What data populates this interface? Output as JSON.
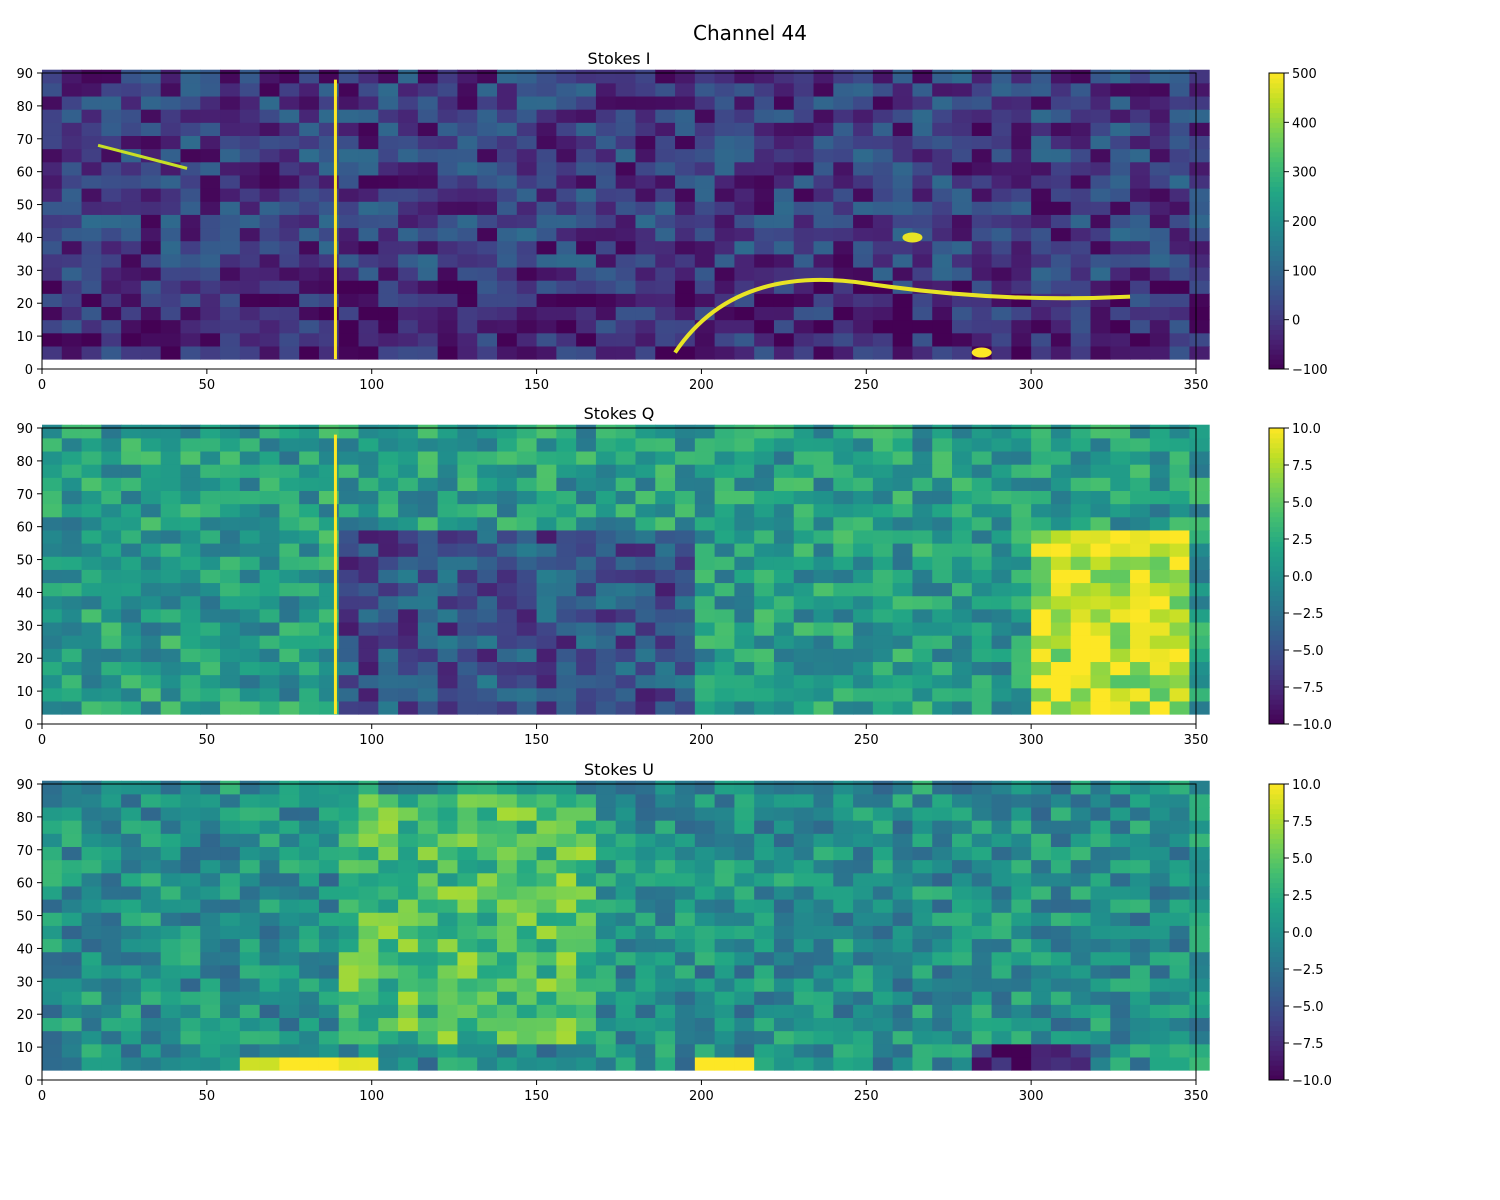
{
  "figure": {
    "suptitle": "Channel 44"
  },
  "chart_data": [
    {
      "type": "heatmap",
      "title": "Stokes I",
      "xlabel": "",
      "ylabel": "",
      "xlim": [
        0,
        350
      ],
      "ylim": [
        0,
        90
      ],
      "xticks": [
        "0",
        "50",
        "100",
        "150",
        "200",
        "250",
        "300",
        "350"
      ],
      "yticks": [
        "0",
        "10",
        "20",
        "30",
        "40",
        "50",
        "60",
        "70",
        "80",
        "90"
      ],
      "data_extent": {
        "x": [
          0,
          350
        ],
        "y": [
          3,
          88
        ]
      },
      "colormap": "viridis",
      "colorbar": {
        "range": [
          -100,
          500
        ],
        "ticks": [
          "−100",
          "0",
          "100",
          "200",
          "300",
          "400",
          "500"
        ]
      },
      "features": [
        {
          "kind": "background",
          "value": 10
        },
        {
          "kind": "vertical-line",
          "x": 89,
          "y": [
            3,
            88
          ],
          "value": 500
        },
        {
          "kind": "line",
          "from": [
            17,
            68
          ],
          "to": [
            44,
            61
          ],
          "value": 450
        },
        {
          "kind": "blob",
          "x": 264,
          "y": 40,
          "value": 480
        },
        {
          "kind": "blob",
          "x": 285,
          "y": 5,
          "value": 500
        },
        {
          "kind": "arc",
          "from": [
            192,
            5
          ],
          "peak": [
            250,
            26
          ],
          "to": [
            330,
            22
          ],
          "value": 480
        },
        {
          "kind": "horizontal-band",
          "y": [
            3,
            27
          ],
          "value": -80
        }
      ]
    },
    {
      "type": "heatmap",
      "title": "Stokes Q",
      "xlabel": "",
      "ylabel": "",
      "xlim": [
        0,
        350
      ],
      "ylim": [
        0,
        90
      ],
      "xticks": [
        "0",
        "50",
        "100",
        "150",
        "200",
        "250",
        "300",
        "350"
      ],
      "yticks": [
        "0",
        "10",
        "20",
        "30",
        "40",
        "50",
        "60",
        "70",
        "80",
        "90"
      ],
      "data_extent": {
        "x": [
          0,
          350
        ],
        "y": [
          3,
          88
        ]
      },
      "colormap": "viridis",
      "colorbar": {
        "range": [
          -10,
          10
        ],
        "ticks": [
          "−10.0",
          "−7.5",
          "−5.0",
          "−2.5",
          "0.0",
          "2.5",
          "5.0",
          "7.5",
          "10.0"
        ]
      },
      "features": [
        {
          "kind": "background",
          "value": 1
        },
        {
          "kind": "vertical-line",
          "x": 89,
          "y": [
            3,
            88
          ],
          "value": 10
        },
        {
          "kind": "region",
          "x": [
            90,
            200
          ],
          "y": [
            3,
            60
          ],
          "value": -5
        },
        {
          "kind": "region",
          "x": [
            300,
            350
          ],
          "y": [
            3,
            60
          ],
          "value": 8
        }
      ]
    },
    {
      "type": "heatmap",
      "title": "Stokes U",
      "xlabel": "",
      "ylabel": "",
      "xlim": [
        0,
        350
      ],
      "ylim": [
        0,
        90
      ],
      "xticks": [
        "0",
        "50",
        "100",
        "150",
        "200",
        "250",
        "300",
        "350"
      ],
      "yticks": [
        "0",
        "10",
        "20",
        "30",
        "40",
        "50",
        "60",
        "70",
        "80",
        "90"
      ],
      "data_extent": {
        "x": [
          0,
          350
        ],
        "y": [
          3,
          88
        ]
      },
      "colormap": "viridis",
      "colorbar": {
        "range": [
          -10,
          10
        ],
        "ticks": [
          "−10.0",
          "−7.5",
          "−5.0",
          "−2.5",
          "0.0",
          "2.5",
          "5.0",
          "7.5",
          "10.0"
        ]
      },
      "features": [
        {
          "kind": "background",
          "value": 0
        },
        {
          "kind": "region",
          "x": [
            90,
            170
          ],
          "y": [
            10,
            88
          ],
          "value": 4
        },
        {
          "kind": "region",
          "x": [
            60,
            100
          ],
          "y": [
            3,
            7
          ],
          "value": 10
        },
        {
          "kind": "region",
          "x": [
            200,
            215
          ],
          "y": [
            3,
            7
          ],
          "value": 10
        },
        {
          "kind": "region",
          "x": [
            280,
            320
          ],
          "y": [
            3,
            10
          ],
          "value": -9
        }
      ]
    }
  ]
}
